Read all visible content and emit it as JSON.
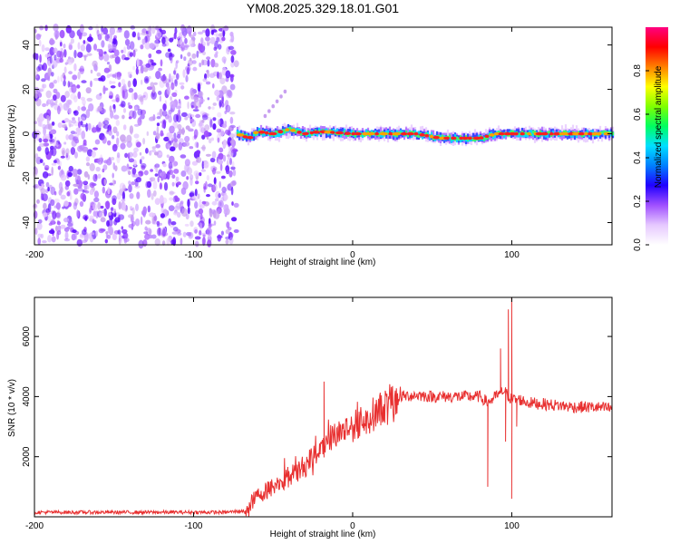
{
  "title": "YM08.2025.329.18.01.G01",
  "chart_data": [
    {
      "type": "heatmap",
      "name": "spectrogram",
      "xlabel": "Height of straight line (km)",
      "ylabel": "Frequency (Hz)",
      "xlim": [
        -200,
        163
      ],
      "ylim": [
        -50,
        48
      ],
      "xticks": [
        -200,
        -100,
        0,
        100
      ],
      "xtick_labels": [
        "-200",
        "-100",
        "0",
        "100"
      ],
      "yticks": [
        -40,
        -20,
        0,
        20,
        40
      ],
      "ytick_labels": [
        "-40",
        "-20",
        "0",
        "20",
        "40"
      ],
      "noise_region_x": [
        -200,
        -73
      ],
      "signal_start_x": -73,
      "colorbar": {
        "label": "Normalized spectral amplitude",
        "range": [
          0,
          1
        ],
        "ticks": [
          0.0,
          0.2,
          0.4,
          0.6,
          0.8
        ],
        "tick_labels": [
          "0.0",
          "0.2",
          "0.4",
          "0.6",
          "0.8"
        ],
        "colors": [
          "#ffffff",
          "#e6c8ff",
          "#a050ff",
          "#2000ff",
          "#0080ff",
          "#00e0ff",
          "#00ff60",
          "#80ff00",
          "#ffff00",
          "#ff8000",
          "#ff0000",
          "#ff0080"
        ]
      },
      "signal_track": [
        [
          -73,
          0
        ],
        [
          -65,
          -2
        ],
        [
          -60,
          1
        ],
        [
          -50,
          0
        ],
        [
          -40,
          2
        ],
        [
          -30,
          0
        ],
        [
          -20,
          1
        ],
        [
          0,
          0
        ],
        [
          20,
          0
        ],
        [
          40,
          0
        ],
        [
          55,
          -2
        ],
        [
          65,
          -2
        ],
        [
          80,
          -2
        ],
        [
          90,
          0
        ],
        [
          100,
          0
        ],
        [
          120,
          0
        ],
        [
          140,
          0
        ],
        [
          163,
          0
        ]
      ]
    },
    {
      "type": "line",
      "name": "snr",
      "xlabel": "Height of straight line (km)",
      "ylabel": "SNR (10 * v/v)",
      "xlim": [
        -200,
        163
      ],
      "ylim": [
        0,
        7300
      ],
      "xticks": [
        -200,
        -100,
        0,
        100
      ],
      "xtick_labels": [
        "-200",
        "-100",
        "0",
        "100"
      ],
      "yticks": [
        2000,
        4000,
        6000
      ],
      "ytick_labels": [
        "2000",
        "4000",
        "6000"
      ],
      "color": "#e83030",
      "series": [
        {
          "name": "SNR",
          "x": [
            -200,
            -160,
            -120,
            -80,
            -68,
            -60,
            -50,
            -40,
            -30,
            -20,
            -10,
            0,
            10,
            20,
            30,
            40,
            50,
            60,
            70,
            80,
            85,
            90,
            95,
            100,
            105,
            110,
            120,
            130,
            140,
            150,
            163
          ],
          "y": [
            150,
            150,
            150,
            150,
            200,
            700,
            1000,
            1300,
            1700,
            2300,
            2800,
            3000,
            3300,
            3700,
            4000,
            4050,
            4000,
            4000,
            4000,
            4000,
            3800,
            4000,
            4200,
            3900,
            3900,
            3800,
            3750,
            3700,
            3650,
            3650,
            3600
          ]
        }
      ],
      "spikes": [
        [
          -18,
          4500
        ],
        [
          85,
          1000
        ],
        [
          91,
          4000
        ],
        [
          93,
          5600
        ],
        [
          96,
          2500
        ],
        [
          98,
          6900
        ],
        [
          100,
          7300
        ],
        [
          100,
          600
        ],
        [
          103,
          3000
        ]
      ]
    }
  ]
}
